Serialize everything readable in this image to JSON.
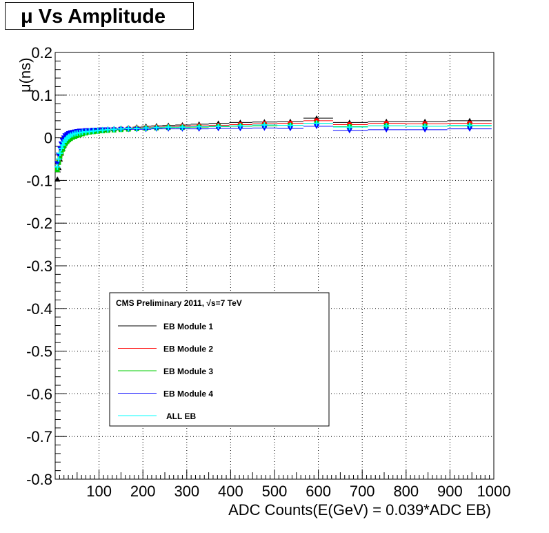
{
  "title": "μ Vs Amplitude",
  "chart_data": {
    "type": "scatter",
    "title": "μ Vs Amplitude",
    "xlabel": "ADC Counts(E(GeV) = 0.039*ADC EB)",
    "ylabel": "μ(ns)",
    "xlim": [
      0,
      1000
    ],
    "ylim": [
      -0.8,
      0.2
    ],
    "grid": true,
    "x_ticks": [
      100,
      200,
      300,
      400,
      500,
      600,
      700,
      800,
      900,
      1000
    ],
    "y_ticks": [
      -0.8,
      -0.7,
      -0.6,
      -0.5,
      -0.4,
      -0.3,
      -0.2,
      -0.1,
      0,
      0.1,
      0.2
    ],
    "y_tick_labels": [
      "-0.8",
      "-0.7",
      "-0.6",
      "-0.5",
      "-0.4",
      "-0.3",
      "-0.2",
      "-0.1",
      "0",
      "0.1",
      "0.2"
    ],
    "legend": {
      "placement": "lower-left",
      "header": "CMS Preliminary 2011,  √s=7 TeV",
      "entries": [
        "EB Module 1",
        "EB Module 2",
        "EB Module 3",
        "EB Module 4",
        "ALL EB"
      ]
    },
    "x": [
      5,
      8,
      11,
      14,
      17,
      20,
      23,
      27,
      31,
      35,
      40,
      45,
      50,
      56,
      62,
      70,
      78,
      87,
      97,
      108,
      120,
      134,
      150,
      167,
      186,
      207,
      231,
      258,
      290,
      328,
      372,
      422,
      477,
      536,
      596,
      671,
      755,
      843,
      945
    ],
    "series": [
      {
        "name": "EB Module 1",
        "color": "#000000",
        "marker": "triangle-up",
        "values": [
          -0.097,
          -0.07,
          -0.05,
          -0.036,
          -0.025,
          -0.017,
          -0.011,
          -0.006,
          -0.002,
          0.001,
          0.004,
          0.006,
          0.008,
          0.01,
          0.012,
          0.014,
          0.015,
          0.017,
          0.018,
          0.019,
          0.02,
          0.021,
          0.022,
          0.023,
          0.025,
          0.027,
          0.028,
          0.029,
          0.03,
          0.032,
          0.034,
          0.036,
          0.037,
          0.038,
          0.046,
          0.036,
          0.038,
          0.038,
          0.04
        ]
      },
      {
        "name": "EB Module 2",
        "color": "#ff0000",
        "marker": "circle",
        "values": [
          -0.072,
          -0.055,
          -0.042,
          -0.031,
          -0.022,
          -0.015,
          -0.01,
          -0.006,
          -0.003,
          0.0,
          0.003,
          0.005,
          0.007,
          0.009,
          0.011,
          0.013,
          0.014,
          0.016,
          0.017,
          0.018,
          0.019,
          0.02,
          0.021,
          0.022,
          0.023,
          0.024,
          0.025,
          0.026,
          0.027,
          0.028,
          0.029,
          0.031,
          0.033,
          0.034,
          0.04,
          0.031,
          0.034,
          0.033,
          0.034
        ]
      },
      {
        "name": "EB Module 3",
        "color": "#00cc00",
        "marker": "square",
        "values": [
          -0.075,
          -0.058,
          -0.045,
          -0.035,
          -0.027,
          -0.02,
          -0.014,
          -0.009,
          -0.005,
          -0.002,
          0.001,
          0.003,
          0.005,
          0.007,
          0.009,
          0.011,
          0.013,
          0.014,
          0.015,
          0.016,
          0.017,
          0.018,
          0.019,
          0.02,
          0.021,
          0.022,
          0.023,
          0.024,
          0.024,
          0.025,
          0.026,
          0.027,
          0.028,
          0.029,
          0.034,
          0.026,
          0.028,
          0.027,
          0.028
        ]
      },
      {
        "name": "EB Module 4",
        "color": "#0000ff",
        "marker": "triangle-down",
        "values": [
          -0.06,
          -0.04,
          -0.025,
          -0.014,
          -0.006,
          0.0,
          0.005,
          0.008,
          0.01,
          0.012,
          0.013,
          0.014,
          0.015,
          0.016,
          0.016,
          0.017,
          0.017,
          0.018,
          0.018,
          0.019,
          0.019,
          0.019,
          0.02,
          0.02,
          0.02,
          0.02,
          0.021,
          0.021,
          0.021,
          0.021,
          0.022,
          0.022,
          0.023,
          0.022,
          0.027,
          0.017,
          0.019,
          0.019,
          0.021
        ]
      },
      {
        "name": "ALL EB",
        "color": "#00ffff",
        "marker": "cross",
        "values": [
          -0.068,
          -0.05,
          -0.036,
          -0.025,
          -0.017,
          -0.01,
          -0.005,
          -0.001,
          0.003,
          0.006,
          0.008,
          0.01,
          0.011,
          0.012,
          0.013,
          0.014,
          0.015,
          0.016,
          0.017,
          0.018,
          0.019,
          0.02,
          0.021,
          0.022,
          0.022,
          0.023,
          0.024,
          0.025,
          0.025,
          0.026,
          0.027,
          0.028,
          0.03,
          0.029,
          0.034,
          0.025,
          0.028,
          0.027,
          0.029
        ]
      }
    ]
  }
}
